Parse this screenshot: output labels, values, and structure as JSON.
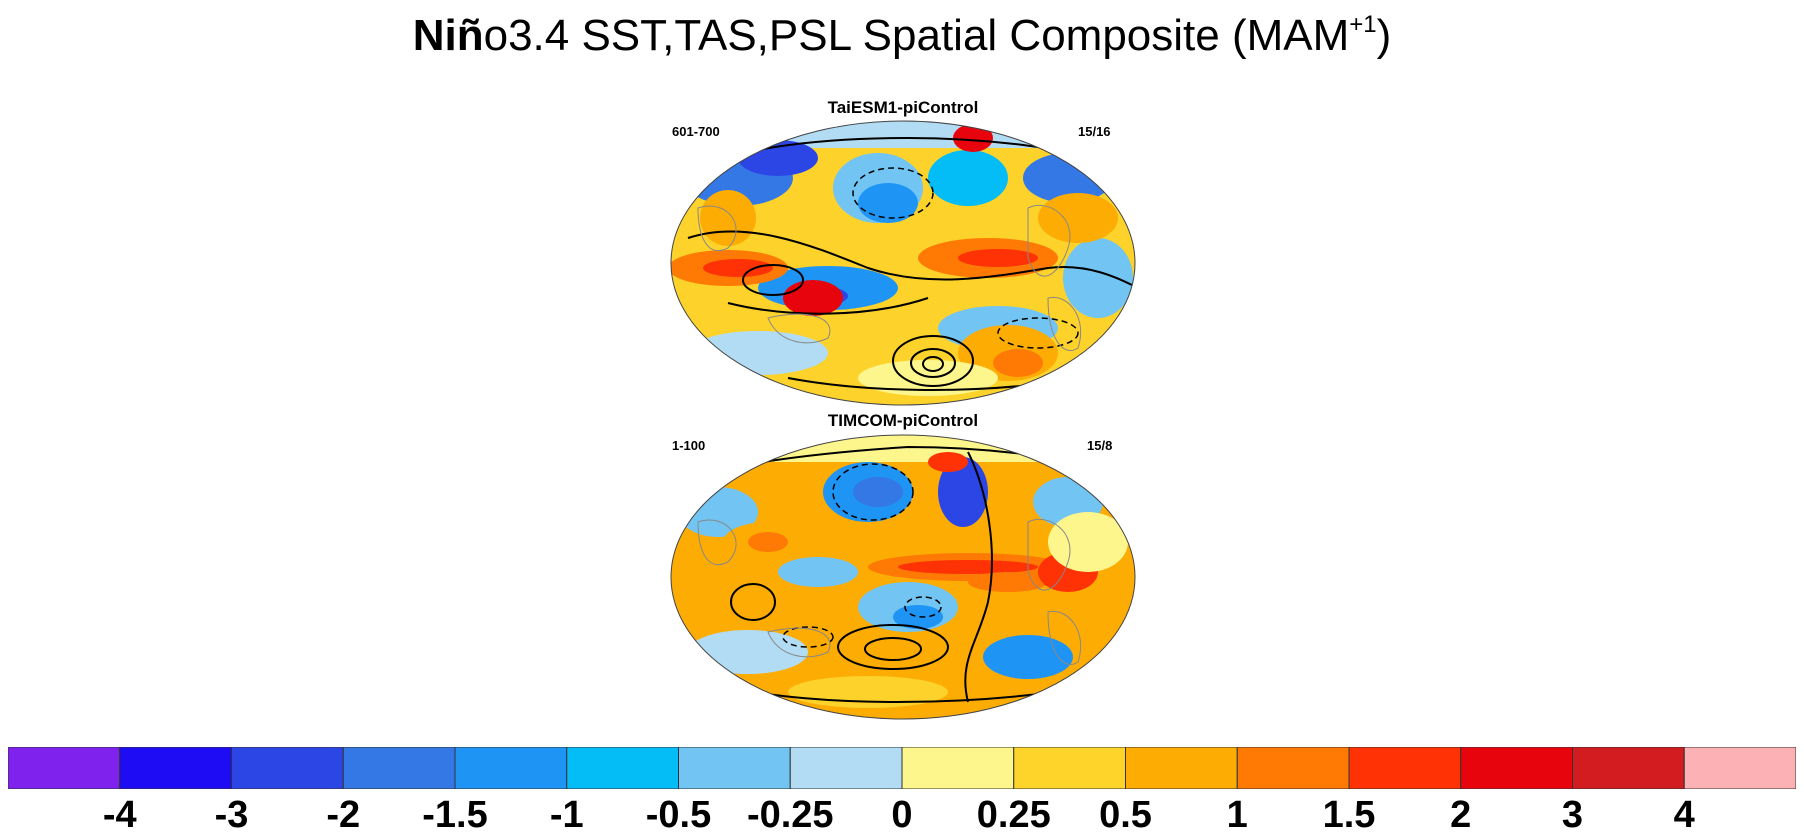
{
  "title": {
    "bold": "Niñ",
    "rest": "o3.4 SST,TAS,PSL Spatial Composite (MAM",
    "sup": "+1",
    "close": ")"
  },
  "panels": [
    {
      "title": "TaiESM1-piControl",
      "left_label": "601-700",
      "right_label": "15/16"
    },
    {
      "title": "TIMCOM-piControl",
      "left_label": "1-100",
      "right_label": "15/8"
    }
  ],
  "colorbar": {
    "colors": [
      "#7f22ee",
      "#1d0cf4",
      "#2c46e6",
      "#3478e6",
      "#1e94f4",
      "#04bcf6",
      "#72c4f2",
      "#b1dcf4",
      "#fdf68c",
      "#fed42a",
      "#fdac04",
      "#fe7a04",
      "#fe3204",
      "#e8040c",
      "#d21c20",
      "#fcb2b4"
    ],
    "labels": [
      "-4",
      "-3",
      "-2",
      "-1.5",
      "-1",
      "-0.5",
      "-0.25",
      "0",
      "0.25",
      "0.5",
      "1",
      "1.5",
      "2",
      "3",
      "4"
    ]
  }
}
